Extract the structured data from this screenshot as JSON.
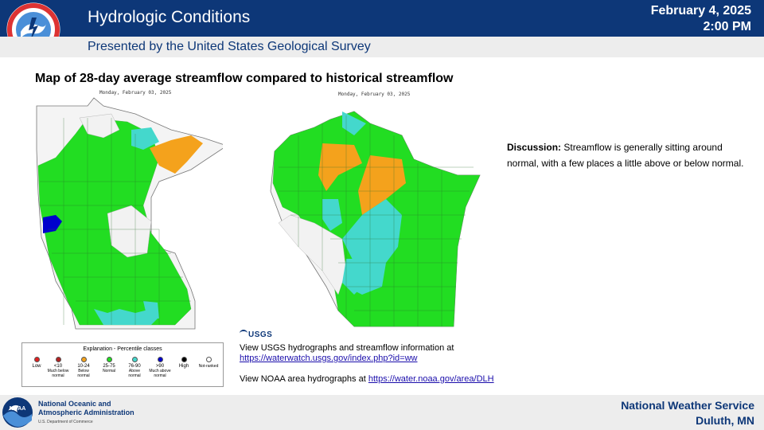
{
  "header": {
    "title": "Hydrologic Conditions",
    "subtitle": "Presented by the United States Geological Survey",
    "date": "February 4, 2025",
    "time": "2:00 PM",
    "logo_text": "NATIONAL WEATHER SERVICE"
  },
  "map_title": "Map of 28-day average streamflow compared to historical streamflow",
  "maps": {
    "mn_date": "Monday, February 03, 2025",
    "wi_date": "Monday, February 03, 2025"
  },
  "legend": {
    "title": "Explanation - Percentile classes",
    "low": "Low",
    "high": "High",
    "classes": [
      {
        "label": "<10",
        "sub": "Much below normal",
        "color": "#b22222"
      },
      {
        "label": "10-24",
        "sub": "Below normal",
        "color": "#f4a21c"
      },
      {
        "label": "25-75",
        "sub": "Normal",
        "color": "#22dd22"
      },
      {
        "label": "76-90",
        "sub": "Above normal",
        "color": "#44d8cc"
      },
      {
        "label": ">90",
        "sub": "Much above normal",
        "color": "#0000cc"
      }
    ],
    "low_color": "#e02020",
    "high_color": "#000000",
    "not_ranked": "Not-ranked"
  },
  "links": {
    "usgs_logo": "USGS",
    "line1": "View USGS hydrographs and streamflow information at",
    "usgs_url": "https://waterwatch.usgs.gov/index.php?id=ww",
    "line2_prefix": "View NOAA  area hydrographs at",
    "noaa_url": "https://water.noaa.gov/area/DLH"
  },
  "discussion": {
    "label": "Discussion:",
    "text": " Streamflow is generally sitting around normal, with a few places a little above or below normal."
  },
  "footer": {
    "noaa_line1": "National Oceanic and",
    "noaa_line2": "Atmospheric Administration",
    "noaa_dept": "U.S. Department of Commerce",
    "nws_line1": "National  Weather  Service",
    "nws_line2": "Duluth,  MN",
    "noaa_logo_text": "NOAA"
  },
  "colors": {
    "navy": "#0d3778",
    "normal": "#22dd22",
    "above": "#44d8cc",
    "below": "#f4a21c",
    "much_above": "#0000cc"
  }
}
